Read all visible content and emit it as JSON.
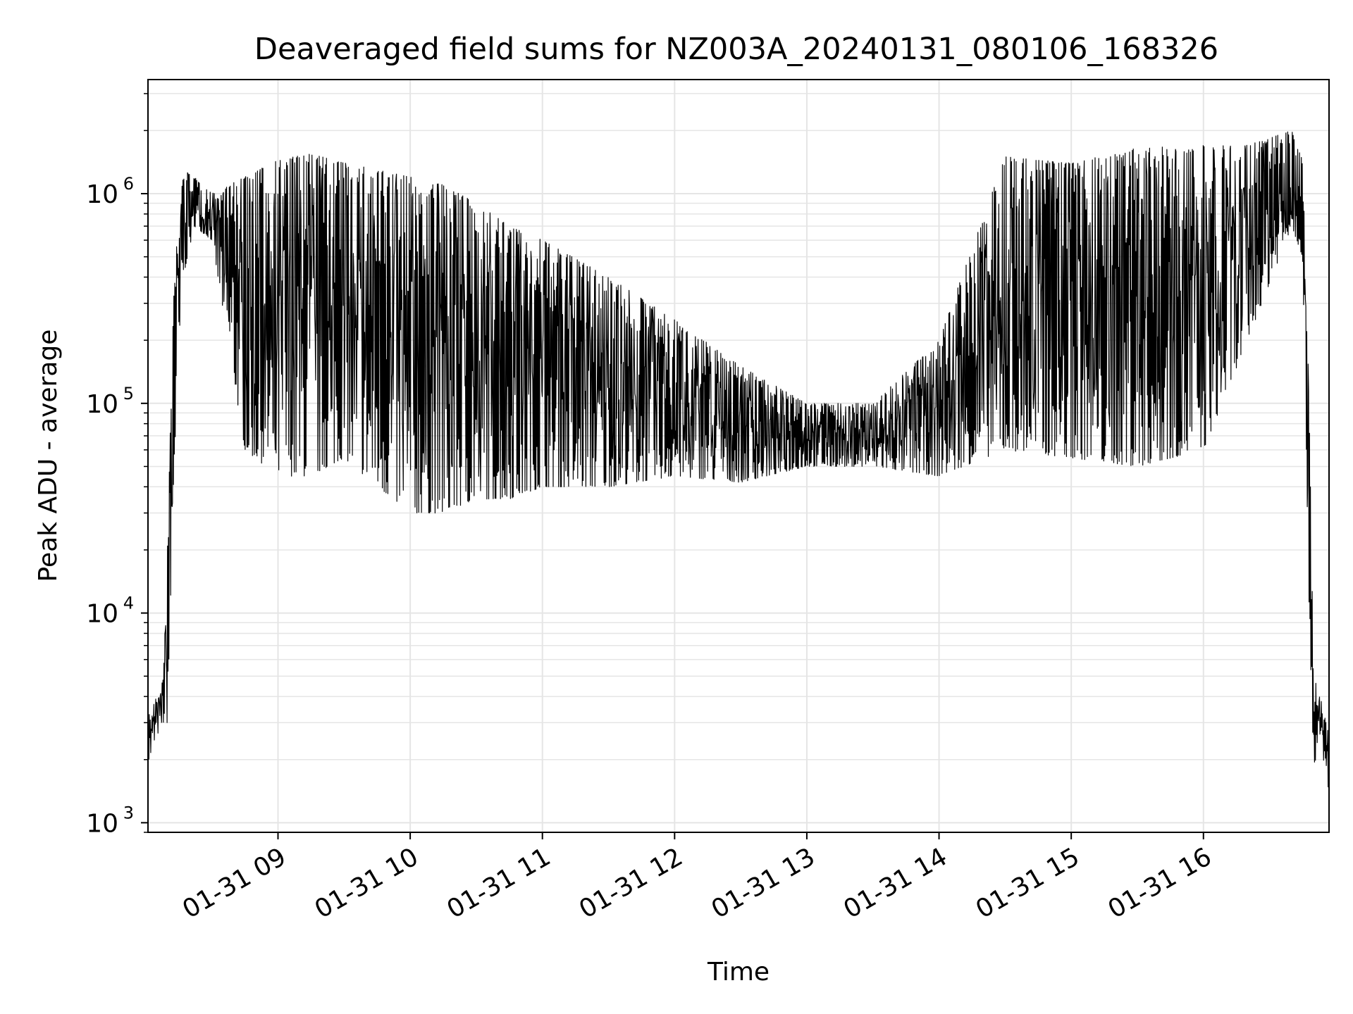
{
  "chart_data": {
    "type": "line",
    "title": "Deaveraged field sums for NZ003A_20240131_080106_168326",
    "xlabel": "Time",
    "ylabel": "Peak ADU - average",
    "yscale": "log",
    "ylim": [
      900,
      3500000
    ],
    "xlim": [
      "2024-01-31 08:01",
      "2024-01-31 16:57"
    ],
    "grid": true,
    "line_color": "#000000",
    "grid_color": "#e5e5e5",
    "x_ticks": [
      {
        "t": "2024-01-31 09:00",
        "label": "01-31 09"
      },
      {
        "t": "2024-01-31 10:00",
        "label": "01-31 10"
      },
      {
        "t": "2024-01-31 11:00",
        "label": "01-31 11"
      },
      {
        "t": "2024-01-31 12:00",
        "label": "01-31 12"
      },
      {
        "t": "2024-01-31 13:00",
        "label": "01-31 13"
      },
      {
        "t": "2024-01-31 14:00",
        "label": "01-31 14"
      },
      {
        "t": "2024-01-31 15:00",
        "label": "01-31 15"
      },
      {
        "t": "2024-01-31 16:00",
        "label": "01-31 16"
      }
    ],
    "y_ticks": [
      {
        "value": 1000,
        "base": "10",
        "exp": "3"
      },
      {
        "value": 10000,
        "base": "10",
        "exp": "4"
      },
      {
        "value": 100000,
        "base": "10",
        "exp": "5"
      },
      {
        "value": 1000000,
        "base": "10",
        "exp": "6"
      }
    ],
    "series": [
      {
        "x": [
          "2024-01-31 08:01",
          "2024-01-31 08:05",
          "2024-01-31 08:08",
          "2024-01-31 08:10",
          "2024-01-31 08:13",
          "2024-01-31 08:17",
          "2024-01-31 08:22",
          "2024-01-31 08:30",
          "2024-01-31 08:45",
          "2024-01-31 09:00",
          "2024-01-31 09:15",
          "2024-01-31 09:30",
          "2024-01-31 09:45",
          "2024-01-31 10:00",
          "2024-01-31 10:15",
          "2024-01-31 10:30",
          "2024-01-31 10:45",
          "2024-01-31 11:00",
          "2024-01-31 11:30",
          "2024-01-31 12:00",
          "2024-01-31 12:30",
          "2024-01-31 13:00",
          "2024-01-31 13:30",
          "2024-01-31 14:00",
          "2024-01-31 14:30",
          "2024-01-31 15:00",
          "2024-01-31 15:30",
          "2024-01-31 16:00",
          "2024-01-31 16:20",
          "2024-01-31 16:40",
          "2024-01-31 16:45",
          "2024-01-31 16:48",
          "2024-01-31 16:50",
          "2024-01-31 16:53",
          "2024-01-31 16:57"
        ],
        "low": [
          1900,
          2600,
          3000,
          3000,
          50000,
          400000,
          700000,
          600000,
          60000,
          45000,
          45000,
          55000,
          40000,
          30000,
          30000,
          35000,
          35000,
          40000,
          40000,
          45000,
          42000,
          50000,
          50000,
          45000,
          60000,
          55000,
          50000,
          60000,
          200000,
          700000,
          500000,
          10000,
          1900,
          2200,
          1400
        ],
        "high": [
          3200,
          4000,
          5000,
          25000,
          450000,
          1300000,
          1200000,
          1000000,
          1200000,
          1450000,
          1550000,
          1400000,
          1300000,
          1200000,
          1100000,
          900000,
          700000,
          600000,
          400000,
          250000,
          150000,
          100000,
          100000,
          200000,
          1500000,
          1400000,
          1650000,
          1700000,
          1700000,
          2000000,
          1500000,
          100000,
          5000,
          4000,
          2600
        ]
      }
    ]
  }
}
